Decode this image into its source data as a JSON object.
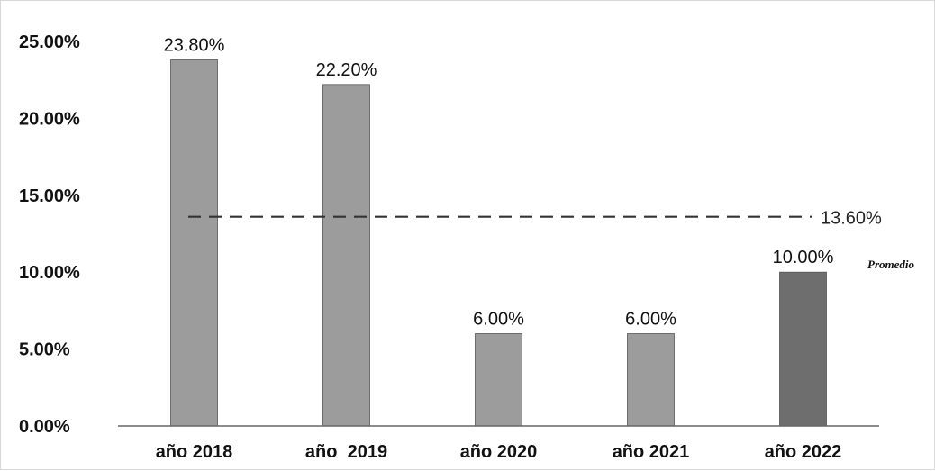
{
  "chart_data": {
    "type": "bar",
    "categories": [
      "año 2018",
      "año  2019",
      "año 2020",
      "año 2021",
      "año 2022"
    ],
    "values": [
      23.8,
      22.2,
      6.0,
      6.0,
      10.0
    ],
    "data_labels": [
      "23.80%",
      "22.20%",
      "6.00%",
      "6.00%",
      "10.00%"
    ],
    "bar_colors": [
      "#9c9c9c",
      "#9c9c9c",
      "#9c9c9c",
      "#9c9c9c",
      "#6e6e6e"
    ],
    "yticks": [
      0,
      5,
      10,
      15,
      20,
      25
    ],
    "ytick_labels": [
      "0.00%",
      "5.00%",
      "10.00%",
      "15.00%",
      "20.00%",
      "25.00%"
    ],
    "ylim": [
      0,
      25
    ],
    "grid": false,
    "average": {
      "value": 13.6,
      "label": "13.60%",
      "name": "Promedio",
      "style": "dashed"
    }
  }
}
